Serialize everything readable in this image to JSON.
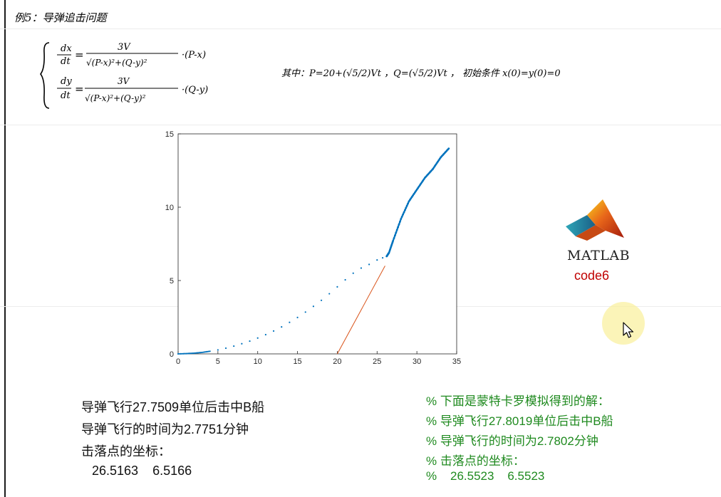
{
  "header": {
    "title": "例5：导弹追击问题"
  },
  "formula": {
    "eq1_lhs_num": "dx",
    "eq1_lhs_den": "dt",
    "eq1_num": "3V",
    "eq1_den": "√(P-x)²+(Q-y)²",
    "eq1_tail": "·(P-x)",
    "eq2_lhs_num": "dy",
    "eq2_lhs_den": "dt",
    "eq2_num": "3V",
    "eq2_den": "√(P-x)²+(Q-y)²",
    "eq2_tail": "·(Q-y)"
  },
  "note": {
    "text": "其中：P=20+(√5/2)Vt ，Q=(√5/2)Vt ， 初始条件 x(0)=y(0)=0"
  },
  "logo": {
    "name": "MATLAB",
    "subtitle": "code6"
  },
  "results": {
    "line1": "导弹飞行27.7509单位后击中B船",
    "line2": "导弹飞行的时间为2.7751分钟",
    "line3": "击落点的坐标：",
    "coords": "   26.5163    6.5166"
  },
  "monte_carlo": {
    "line0": "% 下面是蒙特卡罗模拟得到的解：",
    "line1": "% 导弹飞行27.8019单位后击中B船",
    "line2": "% 导弹飞行的时间为2.7802分钟",
    "line3": "% 击落点的坐标：",
    "line4": "%    26.5523    6.5523"
  },
  "colors": {
    "missile": "#0072BD",
    "ship": "#D95319",
    "comment": "#1f8a1f",
    "logo_sub": "#c00000"
  },
  "chart_data": {
    "type": "line",
    "title": "",
    "xlabel": "",
    "ylabel": "",
    "xlim": [
      0,
      35
    ],
    "ylim": [
      0,
      15
    ],
    "xticks": [
      0,
      5,
      10,
      15,
      20,
      25,
      30,
      35
    ],
    "yticks": [
      0,
      5,
      10,
      15
    ],
    "series": [
      {
        "name": "missile",
        "style": "dotted-markers",
        "color": "#0072BD",
        "points": [
          [
            0,
            0
          ],
          [
            1,
            0.02
          ],
          [
            2,
            0.05
          ],
          [
            3,
            0.1
          ],
          [
            4,
            0.18
          ],
          [
            5,
            0.27
          ],
          [
            6,
            0.39
          ],
          [
            7,
            0.53
          ],
          [
            8,
            0.69
          ],
          [
            9,
            0.87
          ],
          [
            10,
            1.08
          ],
          [
            11,
            1.31
          ],
          [
            12,
            1.56
          ],
          [
            13,
            1.84
          ],
          [
            14,
            2.15
          ],
          [
            15,
            2.48
          ],
          [
            16,
            2.85
          ],
          [
            17,
            3.24
          ],
          [
            18,
            3.65
          ],
          [
            19,
            4.1
          ],
          [
            20,
            4.57
          ],
          [
            21,
            5.05
          ],
          [
            22,
            5.5
          ],
          [
            23,
            5.85
          ],
          [
            24,
            6.1
          ],
          [
            25,
            6.4
          ],
          [
            25.7,
            6.55
          ],
          [
            26.2,
            6.65
          ],
          [
            26.5,
            6.9
          ],
          [
            27,
            7.7
          ],
          [
            28,
            9.2
          ],
          [
            29,
            10.4
          ],
          [
            30,
            11.2
          ],
          [
            31,
            12.0
          ],
          [
            32,
            12.6
          ],
          [
            33,
            13.4
          ],
          [
            34,
            14.0
          ]
        ]
      },
      {
        "name": "ship",
        "style": "line",
        "color": "#D95319",
        "points": [
          [
            20,
            0
          ],
          [
            26,
            6.0
          ]
        ]
      }
    ]
  }
}
